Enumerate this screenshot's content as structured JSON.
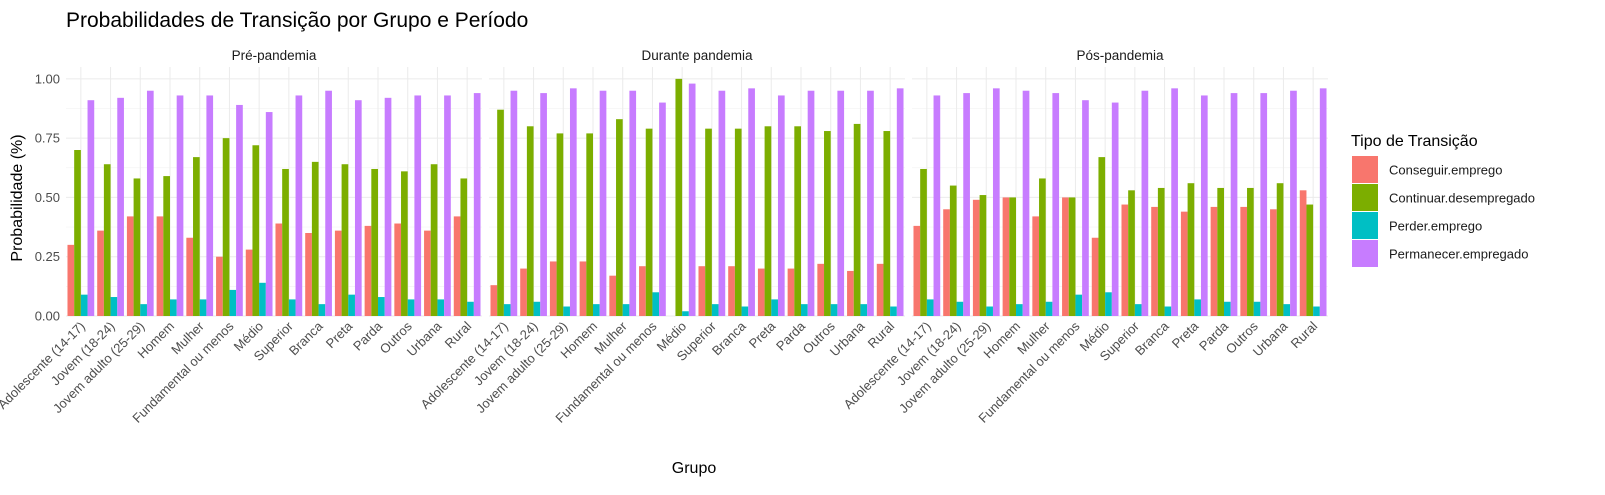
{
  "chart_data": {
    "type": "bar",
    "title": "Probabilidades de Transição por Grupo e Período",
    "xlabel": "Grupo",
    "ylabel": "Probabilidade (%)",
    "ylim": [
      0,
      1.05
    ],
    "yticks": [
      "0.00",
      "0.25",
      "0.50",
      "0.75",
      "1.00"
    ],
    "ytick_values": [
      0,
      0.25,
      0.5,
      0.75,
      1.0
    ],
    "grid": true,
    "legend_title": "Tipo de Transição",
    "legend_position": "right",
    "categories": [
      "Adolescente (14-17)",
      "Jovem (18-24)",
      "Jovem adulto (25-29)",
      "Homem",
      "Mulher",
      "Fundamental ou menos",
      "Médio",
      "Superior",
      "Branca",
      "Preta",
      "Parda",
      "Outros",
      "Urbana",
      "Rural"
    ],
    "series_names": [
      "Conseguir.emprego",
      "Continuar.desempregado",
      "Perder.emprego",
      "Permanecer.empregado"
    ],
    "colors": [
      "#F8766D",
      "#7CAE00",
      "#00BFC4",
      "#C77CFF"
    ],
    "panels": [
      {
        "label": "Pré-pandemia",
        "series": [
          {
            "name": "Conseguir.emprego",
            "values": [
              0.3,
              0.36,
              0.42,
              0.42,
              0.33,
              0.25,
              0.28,
              0.39,
              0.35,
              0.36,
              0.38,
              0.39,
              0.36,
              0.42
            ]
          },
          {
            "name": "Continuar.desempregado",
            "values": [
              0.7,
              0.64,
              0.58,
              0.59,
              0.67,
              0.75,
              0.72,
              0.62,
              0.65,
              0.64,
              0.62,
              0.61,
              0.64,
              0.58
            ]
          },
          {
            "name": "Perder.emprego",
            "values": [
              0.09,
              0.08,
              0.05,
              0.07,
              0.07,
              0.11,
              0.14,
              0.07,
              0.05,
              0.09,
              0.08,
              0.07,
              0.07,
              0.06
            ]
          },
          {
            "name": "Permanecer.empregado",
            "values": [
              0.91,
              0.92,
              0.95,
              0.93,
              0.93,
              0.89,
              0.86,
              0.93,
              0.95,
              0.91,
              0.92,
              0.93,
              0.93,
              0.94
            ]
          }
        ]
      },
      {
        "label": "Durante pandemia",
        "series": [
          {
            "name": "Conseguir.emprego",
            "values": [
              0.13,
              0.2,
              0.23,
              0.23,
              0.17,
              0.21,
              0.0,
              0.21,
              0.21,
              0.2,
              0.2,
              0.22,
              0.19,
              0.22
            ]
          },
          {
            "name": "Continuar.desempregado",
            "values": [
              0.87,
              0.8,
              0.77,
              0.77,
              0.83,
              0.79,
              1.0,
              0.79,
              0.79,
              0.8,
              0.8,
              0.78,
              0.81,
              0.78
            ]
          },
          {
            "name": "Perder.emprego",
            "values": [
              0.05,
              0.06,
              0.04,
              0.05,
              0.05,
              0.1,
              0.02,
              0.05,
              0.04,
              0.07,
              0.05,
              0.05,
              0.05,
              0.04
            ]
          },
          {
            "name": "Permanecer.empregado",
            "values": [
              0.95,
              0.94,
              0.96,
              0.95,
              0.95,
              0.9,
              0.98,
              0.95,
              0.96,
              0.93,
              0.95,
              0.95,
              0.95,
              0.96
            ]
          }
        ]
      },
      {
        "label": "Pós-pandemia",
        "series": [
          {
            "name": "Conseguir.emprego",
            "values": [
              0.38,
              0.45,
              0.49,
              0.5,
              0.42,
              0.5,
              0.33,
              0.47,
              0.46,
              0.44,
              0.46,
              0.46,
              0.45,
              0.53
            ]
          },
          {
            "name": "Continuar.desempregado",
            "values": [
              0.62,
              0.55,
              0.51,
              0.5,
              0.58,
              0.5,
              0.67,
              0.53,
              0.54,
              0.56,
              0.54,
              0.54,
              0.56,
              0.47
            ]
          },
          {
            "name": "Perder.emprego",
            "values": [
              0.07,
              0.06,
              0.04,
              0.05,
              0.06,
              0.09,
              0.1,
              0.05,
              0.04,
              0.07,
              0.06,
              0.06,
              0.05,
              0.04
            ]
          },
          {
            "name": "Permanecer.empregado",
            "values": [
              0.93,
              0.94,
              0.96,
              0.95,
              0.94,
              0.91,
              0.9,
              0.95,
              0.96,
              0.93,
              0.94,
              0.94,
              0.95,
              0.96
            ]
          }
        ]
      }
    ]
  }
}
